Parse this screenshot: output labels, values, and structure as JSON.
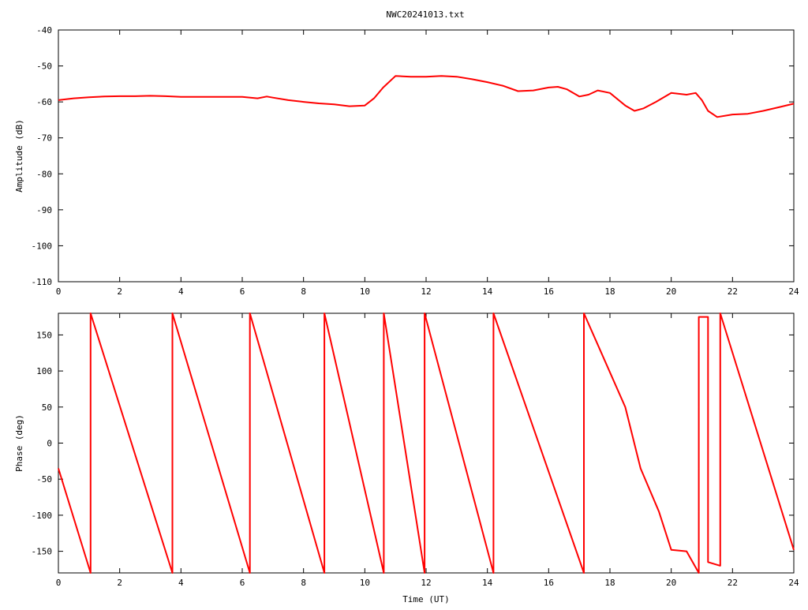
{
  "title": "NWC20241013.txt",
  "colors": {
    "series": "#ff0000",
    "axis": "#000000",
    "background": "#ffffff"
  },
  "chart_data": [
    {
      "type": "line",
      "ylabel": "Amplitude (dB)",
      "xlabel": "",
      "xlim": [
        0,
        24
      ],
      "ylim": [
        -110,
        -40
      ],
      "xticks": [
        0,
        2,
        4,
        6,
        8,
        10,
        12,
        14,
        16,
        18,
        20,
        22,
        24
      ],
      "yticks": [
        -110,
        -100,
        -90,
        -80,
        -70,
        -60,
        -50,
        -40
      ],
      "grid": false,
      "series": [
        {
          "x": [
            0,
            0.5,
            1,
            1.5,
            2,
            2.5,
            3,
            3.5,
            4,
            4.5,
            5,
            5.5,
            6,
            6.5,
            6.8,
            7,
            7.5,
            8,
            8.5,
            9,
            9.5,
            10,
            10.3,
            10.6,
            11,
            11.5,
            12,
            12.5,
            13,
            13.5,
            14,
            14.5,
            15,
            15.5,
            16,
            16.3,
            16.6,
            17,
            17.3,
            17.6,
            18,
            18.5,
            18.8,
            19.1,
            19.5,
            20,
            20.5,
            20.8,
            21,
            21.2,
            21.5,
            22,
            22.5,
            23,
            23.5,
            24
          ],
          "y": [
            -59.5,
            -59,
            -58.7,
            -58.5,
            -58.4,
            -58.4,
            -58.3,
            -58.4,
            -58.6,
            -58.6,
            -58.6,
            -58.6,
            -58.6,
            -59,
            -58.5,
            -58.8,
            -59.5,
            -60,
            -60.4,
            -60.7,
            -61.2,
            -61,
            -59,
            -56,
            -52.8,
            -53,
            -53,
            -52.8,
            -53,
            -53.7,
            -54.5,
            -55.5,
            -57,
            -56.8,
            -56,
            -55.8,
            -56.5,
            -58.5,
            -58,
            -56.8,
            -57.5,
            -61,
            -62.5,
            -61.8,
            -60,
            -57.5,
            -58,
            -57.5,
            -59.5,
            -62.5,
            -64.2,
            -63.5,
            -63.3,
            -62.5,
            -61.5,
            -60.5
          ]
        }
      ]
    },
    {
      "type": "line",
      "ylabel": "Phase (deg)",
      "xlabel": "Time (UT)",
      "xlim": [
        0,
        24
      ],
      "ylim": [
        -180,
        180
      ],
      "xticks": [
        0,
        2,
        4,
        6,
        8,
        10,
        12,
        14,
        16,
        18,
        20,
        22,
        24
      ],
      "yticks": [
        -150,
        -100,
        -50,
        0,
        50,
        100,
        150
      ],
      "grid": false,
      "series": [
        {
          "x": [
            0,
            1.05,
            1.05,
            3.72,
            3.72,
            6.25,
            6.25,
            8.68,
            8.68,
            10.62,
            10.62,
            11.95,
            11.95,
            14.2,
            14.2,
            17.15,
            17.15,
            18.5,
            19,
            19.6,
            20,
            20.5,
            20.9,
            20.9,
            21.2,
            21.2,
            21.6,
            21.6,
            24
          ],
          "y": [
            -35,
            -180,
            180,
            -180,
            180,
            -180,
            180,
            -180,
            180,
            -180,
            180,
            -180,
            180,
            -180,
            180,
            -180,
            180,
            50,
            -35,
            -95,
            -148,
            -150,
            -180,
            175,
            175,
            -165,
            -170,
            180,
            -148
          ]
        }
      ]
    }
  ]
}
